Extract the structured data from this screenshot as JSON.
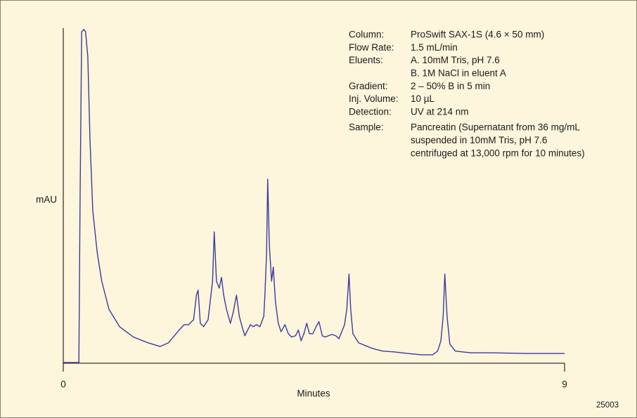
{
  "chart_data": {
    "type": "line",
    "x_label": "Minutes",
    "y_label": "mAU",
    "figure_id": "25003",
    "xlim": [
      0,
      9
    ],
    "xticks": [
      0,
      9
    ],
    "ylim": [
      0,
      100
    ],
    "annotations": [
      {
        "label": "Column:",
        "lines": [
          "ProSwift SAX-1S (4.6 × 50 mm)"
        ]
      },
      {
        "label": "Flow Rate:",
        "lines": [
          "1.5 mL/min"
        ]
      },
      {
        "label": "Eluents:",
        "lines": [
          "A. 10mM Tris, pH 7.6",
          "B. 1M NaCl in eluent A"
        ]
      },
      {
        "label": "Gradient:",
        "lines": [
          "2 – 50% B in 5 min"
        ]
      },
      {
        "label": "Inj. Volume:",
        "lines": [
          "10 µL"
        ]
      },
      {
        "label": "Detection:",
        "lines": [
          "UV at 214 nm"
        ]
      },
      {
        "label": "Sample:",
        "lines": [
          "Pancreatin (Supernatant from 36 mg/mL",
          "suspended in 10mM Tris, pH 7.6",
          "centrifuged at 13,000 rpm for 10 minutes)"
        ]
      }
    ],
    "series": [
      {
        "color": "#3b3b9e",
        "x": [
          0,
          0.28,
          0.3,
          0.33,
          0.37,
          0.4,
          0.44,
          0.48,
          0.53,
          0.61,
          0.69,
          0.82,
          1.01,
          1.26,
          1.52,
          1.74,
          1.89,
          2.08,
          2.17,
          2.25,
          2.34,
          2.39,
          2.42,
          2.46,
          2.52,
          2.6,
          2.68,
          2.71,
          2.75,
          2.8,
          2.84,
          2.88,
          2.93,
          3.0,
          3.05,
          3.11,
          3.16,
          3.22,
          3.26,
          3.31,
          3.36,
          3.41,
          3.47,
          3.53,
          3.6,
          3.62,
          3.65,
          3.67,
          3.7,
          3.74,
          3.77,
          3.81,
          3.86,
          3.91,
          3.98,
          4.04,
          4.1,
          4.17,
          4.22,
          4.27,
          4.32,
          4.37,
          4.42,
          4.48,
          4.54,
          4.59,
          4.65,
          4.7,
          4.76,
          4.82,
          4.89,
          4.95,
          5.0,
          5.05,
          5.09,
          5.13,
          5.16,
          5.2,
          5.3,
          5.43,
          5.55,
          5.74,
          5.93,
          6.19,
          6.44,
          6.63,
          6.72,
          6.78,
          6.82,
          6.85,
          6.89,
          6.94,
          7.04,
          7.32,
          7.7,
          8.33,
          9.0
        ],
        "values": [
          0.2,
          0.2,
          45.5,
          98.9,
          99.6,
          98.9,
          91.6,
          66.5,
          45.5,
          32.9,
          24.5,
          16.1,
          10.9,
          7.8,
          6.1,
          5.0,
          6.1,
          9.9,
          11.5,
          11.5,
          13.0,
          20.3,
          21.8,
          11.9,
          10.9,
          13.0,
          24.5,
          39.2,
          24.5,
          22.4,
          25.6,
          20.3,
          16.1,
          11.9,
          15.1,
          20.3,
          14.0,
          10.3,
          8.2,
          9.9,
          11.5,
          10.9,
          11.5,
          10.9,
          14.0,
          20.3,
          32.9,
          54.9,
          35.0,
          24.5,
          28.7,
          18.2,
          11.9,
          9.4,
          11.5,
          8.8,
          7.8,
          8.2,
          9.9,
          6.7,
          8.8,
          11.9,
          8.8,
          8.8,
          10.9,
          12.4,
          8.2,
          7.8,
          8.2,
          8.6,
          8.2,
          7.3,
          9.4,
          11.5,
          16.1,
          26.6,
          16.1,
          8.8,
          6.1,
          5.2,
          4.4,
          3.6,
          3.4,
          2.9,
          2.5,
          2.5,
          3.6,
          6.7,
          14.0,
          26.6,
          14.0,
          5.7,
          3.6,
          3.1,
          3.1,
          2.9,
          2.9
        ]
      }
    ]
  }
}
